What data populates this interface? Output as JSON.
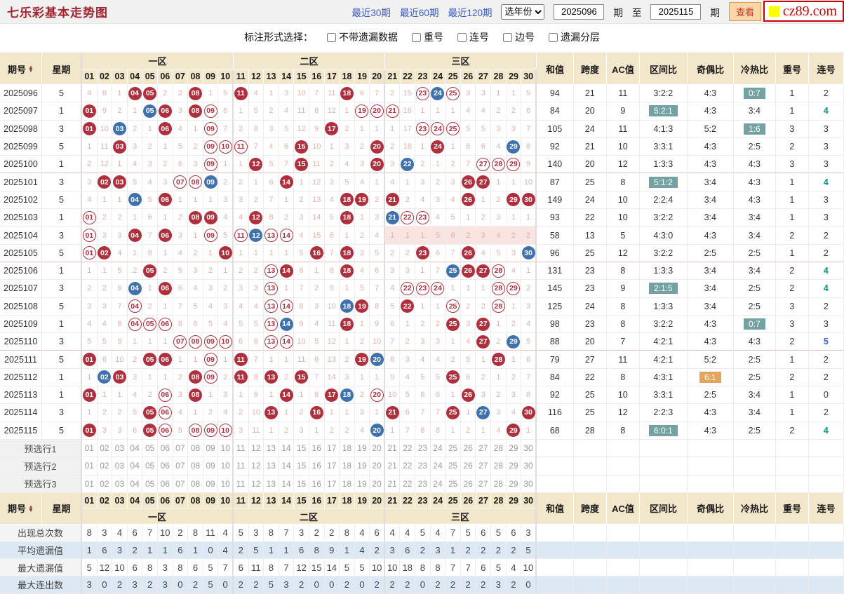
{
  "topbar": {
    "title": "七乐彩基本走势图",
    "links": [
      "最近30期",
      "最近60期",
      "最近120期"
    ],
    "year_select": "选年份",
    "range_from": "2025096",
    "issue_suffix": "期",
    "to_label": "至",
    "range_to": "2025115",
    "view_button": "查看",
    "logo_text": "cz89.com"
  },
  "filter": {
    "label": "标注形式选择：",
    "options": [
      "不带遗漏数据",
      "重号",
      "连号",
      "边号",
      "遗漏分层"
    ]
  },
  "table": {
    "issue_col": "期号",
    "week_col": "星期",
    "zones": [
      "一区",
      "二区",
      "三区"
    ],
    "numbers": [
      "01",
      "02",
      "03",
      "04",
      "05",
      "06",
      "07",
      "08",
      "09",
      "10",
      "11",
      "12",
      "13",
      "14",
      "15",
      "16",
      "17",
      "18",
      "19",
      "20",
      "21",
      "22",
      "23",
      "24",
      "25",
      "26",
      "27",
      "28",
      "29",
      "30"
    ],
    "stat_cols": [
      "和值",
      "跨度",
      "AC值",
      "区间比",
      "奇偶比",
      "冷热比",
      "重号",
      "连号"
    ],
    "rows": [
      {
        "issue": "2025096",
        "week": "5",
        "cells": [
          "4",
          "8",
          "1",
          "r04",
          "r05",
          "2",
          "2",
          "r08",
          "1",
          "5",
          "r11",
          "4",
          "1",
          "3",
          "10",
          "7",
          "11",
          "r18",
          "6",
          "7",
          "2",
          "15",
          "o23",
          "b24",
          "o25",
          "3",
          "3",
          "1",
          "1",
          "5"
        ],
        "stats": [
          "94",
          "21",
          "11",
          "3:2:2",
          "4:3",
          "0:7",
          "1",
          "2"
        ],
        "hl": {
          "5": "teal"
        }
      },
      {
        "issue": "2025097",
        "week": "1",
        "cells": [
          "r01",
          "9",
          "2",
          "1",
          "b05",
          "r06",
          "3",
          "r08",
          "o09",
          "6",
          "1",
          "5",
          "2",
          "4",
          "11",
          "8",
          "12",
          "1",
          "o19",
          "o20",
          "o21",
          "16",
          "1",
          "1",
          "1",
          "4",
          "4",
          "2",
          "2",
          "6"
        ],
        "stats": [
          "84",
          "20",
          "9",
          "5:2:1",
          "4:3",
          "3:4",
          "1",
          "4"
        ],
        "hl": {
          "3": "teal"
        },
        "txt": {
          "7": "teal"
        }
      },
      {
        "issue": "2025098",
        "week": "3",
        "cells": [
          "r01",
          "10",
          "b03",
          "2",
          "1",
          "r06",
          "4",
          "1",
          "o09",
          "7",
          "2",
          "8",
          "3",
          "5",
          "12",
          "9",
          "r17",
          "2",
          "1",
          "1",
          "1",
          "17",
          "o23",
          "o24",
          "o25",
          "5",
          "5",
          "3",
          "3",
          "7"
        ],
        "stats": [
          "105",
          "24",
          "11",
          "4:1:3",
          "5:2",
          "1:6",
          "3",
          "3"
        ],
        "hl": {
          "5": "teal"
        }
      },
      {
        "issue": "2025099",
        "week": "5",
        "cells": [
          "1",
          "11",
          "r03",
          "3",
          "2",
          "1",
          "5",
          "2",
          "o09",
          "o10",
          "o11",
          "7",
          "4",
          "6",
          "r15",
          "10",
          "1",
          "3",
          "2",
          "r20",
          "2",
          "18",
          "1",
          "r24",
          "1",
          "6",
          "6",
          "4",
          "b29",
          "8"
        ],
        "stats": [
          "92",
          "21",
          "10",
          "3:3:1",
          "4:3",
          "2:5",
          "2",
          "3"
        ]
      },
      {
        "issue": "2025100",
        "week": "1",
        "cells": [
          "2",
          "12",
          "1",
          "4",
          "3",
          "2",
          "6",
          "3",
          "o09",
          "1",
          "1",
          "r12",
          "5",
          "7",
          "r15",
          "11",
          "2",
          "4",
          "3",
          "r20",
          "3",
          "b22",
          "2",
          "1",
          "2",
          "7",
          "o27",
          "o28",
          "o29",
          "9"
        ],
        "stats": [
          "140",
          "20",
          "12",
          "1:3:3",
          "4:3",
          "4:3",
          "3",
          "3"
        ]
      },
      {
        "issue": "2025101",
        "week": "3",
        "cells": [
          "3",
          "r02",
          "r03",
          "5",
          "4",
          "3",
          "o07",
          "o08",
          "b09",
          "2",
          "2",
          "1",
          "6",
          "r14",
          "1",
          "12",
          "3",
          "5",
          "4",
          "1",
          "4",
          "1",
          "3",
          "2",
          "3",
          "r26",
          "r27",
          "1",
          "1",
          "10"
        ],
        "stats": [
          "87",
          "25",
          "8",
          "5:1:2",
          "3:4",
          "4:3",
          "1",
          "4"
        ],
        "hl": {
          "3": "teal"
        },
        "txt": {
          "7": "teal"
        }
      },
      {
        "issue": "2025102",
        "week": "5",
        "cells": [
          "4",
          "1",
          "1",
          "b04",
          "5",
          "r06",
          "1",
          "1",
          "1",
          "3",
          "3",
          "2",
          "7",
          "1",
          "2",
          "13",
          "4",
          "r18",
          "r19",
          "2",
          "r21",
          "2",
          "4",
          "3",
          "4",
          "r26",
          "1",
          "2",
          "r29",
          "r30"
        ],
        "stats": [
          "149",
          "24",
          "10",
          "2:2:4",
          "3:4",
          "4:3",
          "1",
          "3"
        ]
      },
      {
        "issue": "2025103",
        "week": "1",
        "cells": [
          "o01",
          "2",
          "2",
          "1",
          "6",
          "1",
          "2",
          "r08",
          "r09",
          "4",
          "4",
          "r12",
          "8",
          "2",
          "3",
          "14",
          "5",
          "r18",
          "1",
          "3",
          "b21",
          "o22",
          "o23",
          "4",
          "5",
          "1",
          "2",
          "3",
          "1",
          "1"
        ],
        "stats": [
          "93",
          "22",
          "10",
          "3:2:2",
          "3:4",
          "3:4",
          "1",
          "3"
        ]
      },
      {
        "issue": "2025104",
        "week": "3",
        "cells": [
          "o01",
          "3",
          "3",
          "r04",
          "7",
          "r06",
          "3",
          "1",
          "o09",
          "5",
          "o11",
          "b12",
          "o13",
          "o14",
          "4",
          "15",
          "6",
          "1",
          "2",
          "4",
          "1",
          "1",
          "1",
          "5",
          "6",
          "2",
          "3",
          "4",
          "2",
          "2"
        ],
        "stats": [
          "58",
          "13",
          "5",
          "4:3:0",
          "4:3",
          "3:4",
          "2",
          "2"
        ],
        "pink_zone": 3
      },
      {
        "issue": "2025105",
        "week": "5",
        "cells": [
          "o01",
          "r02",
          "4",
          "1",
          "8",
          "1",
          "4",
          "2",
          "1",
          "r10",
          "1",
          "1",
          "1",
          "1",
          "5",
          "r16",
          "7",
          "r18",
          "3",
          "5",
          "2",
          "2",
          "r23",
          "6",
          "7",
          "r26",
          "4",
          "5",
          "3",
          "b30"
        ],
        "stats": [
          "96",
          "25",
          "12",
          "3:2:2",
          "2:5",
          "2:5",
          "1",
          "2"
        ]
      },
      {
        "issue": "2025106",
        "week": "1",
        "cells": [
          "1",
          "1",
          "5",
          "2",
          "r05",
          "2",
          "5",
          "3",
          "2",
          "1",
          "2",
          "2",
          "o13",
          "r14",
          "6",
          "1",
          "8",
          "r18",
          "4",
          "6",
          "3",
          "3",
          "1",
          "7",
          "b25",
          "r26",
          "r27",
          "o28",
          "4",
          "1"
        ],
        "stats": [
          "131",
          "23",
          "8",
          "1:3:3",
          "3:4",
          "3:4",
          "2",
          "4"
        ],
        "txt": {
          "7": "teal"
        }
      },
      {
        "issue": "2025107",
        "week": "3",
        "cells": [
          "2",
          "2",
          "6",
          "b04",
          "1",
          "r06",
          "6",
          "4",
          "3",
          "2",
          "3",
          "3",
          "o13",
          "1",
          "7",
          "2",
          "9",
          "1",
          "5",
          "7",
          "4",
          "o22",
          "o23",
          "o24",
          "1",
          "1",
          "1",
          "o28",
          "o29",
          "2"
        ],
        "stats": [
          "145",
          "23",
          "9",
          "2:1:5",
          "3:4",
          "2:5",
          "2",
          "4"
        ],
        "hl": {
          "3": "teal"
        },
        "txt": {
          "7": "teal"
        }
      },
      {
        "issue": "2025108",
        "week": "5",
        "cells": [
          "3",
          "3",
          "7",
          "o04",
          "2",
          "1",
          "7",
          "5",
          "4",
          "3",
          "4",
          "4",
          "o13",
          "o14",
          "8",
          "3",
          "10",
          "b18",
          "r19",
          "8",
          "5",
          "r22",
          "1",
          "1",
          "o25",
          "2",
          "2",
          "o28",
          "1",
          "3"
        ],
        "stats": [
          "125",
          "24",
          "8",
          "1:3:3",
          "3:4",
          "2:5",
          "3",
          "2"
        ]
      },
      {
        "issue": "2025109",
        "week": "1",
        "cells": [
          "4",
          "4",
          "8",
          "o04",
          "o05",
          "o06",
          "8",
          "6",
          "5",
          "4",
          "5",
          "5",
          "o13",
          "b14",
          "9",
          "4",
          "11",
          "r18",
          "1",
          "9",
          "6",
          "1",
          "2",
          "2",
          "r25",
          "3",
          "r27",
          "1",
          "2",
          "4"
        ],
        "stats": [
          "98",
          "23",
          "8",
          "3:2:2",
          "4:3",
          "0:7",
          "3",
          "3"
        ],
        "hl": {
          "5": "teal"
        }
      },
      {
        "issue": "2025110",
        "week": "3",
        "cells": [
          "5",
          "5",
          "9",
          "1",
          "1",
          "1",
          "o07",
          "o08",
          "o09",
          "o10",
          "6",
          "6",
          "o13",
          "o14",
          "10",
          "5",
          "12",
          "1",
          "2",
          "10",
          "7",
          "2",
          "3",
          "3",
          "1",
          "4",
          "r27",
          "2",
          "b29",
          "5"
        ],
        "stats": [
          "88",
          "20",
          "7",
          "4:2:1",
          "4:3",
          "4:3",
          "2",
          "5"
        ],
        "txt": {
          "7": "blue"
        }
      },
      {
        "issue": "2025111",
        "week": "5",
        "cells": [
          "r01",
          "6",
          "10",
          "2",
          "r05",
          "r06",
          "1",
          "1",
          "o09",
          "1",
          "r11",
          "7",
          "1",
          "1",
          "11",
          "6",
          "13",
          "2",
          "r19",
          "b20",
          "8",
          "3",
          "4",
          "4",
          "2",
          "5",
          "1",
          "r28",
          "1",
          "6"
        ],
        "stats": [
          "79",
          "27",
          "11",
          "4:2:1",
          "5:2",
          "2:5",
          "1",
          "2"
        ]
      },
      {
        "issue": "2025112",
        "week": "1",
        "cells": [
          "1",
          "b02",
          "r03",
          "3",
          "1",
          "1",
          "2",
          "r08",
          "o09",
          "2",
          "r11",
          "8",
          "r13",
          "2",
          "r15",
          "7",
          "14",
          "3",
          "1",
          "1",
          "9",
          "4",
          "5",
          "5",
          "r25",
          "6",
          "2",
          "1",
          "2",
          "7"
        ],
        "stats": [
          "84",
          "22",
          "8",
          "4:3:1",
          "6:1",
          "2:5",
          "2",
          "2"
        ],
        "hl": {
          "4": "orange"
        }
      },
      {
        "issue": "2025113",
        "week": "1",
        "cells": [
          "r01",
          "1",
          "1",
          "4",
          "2",
          "o06",
          "3",
          "r08",
          "1",
          "3",
          "1",
          "9",
          "1",
          "r14",
          "1",
          "8",
          "r17",
          "b18",
          "2",
          "o20",
          "10",
          "5",
          "6",
          "6",
          "1",
          "r26",
          "3",
          "2",
          "3",
          "8"
        ],
        "stats": [
          "92",
          "25",
          "10",
          "3:3:1",
          "2:5",
          "3:4",
          "1",
          "0"
        ]
      },
      {
        "issue": "2025114",
        "week": "3",
        "cells": [
          "1",
          "2",
          "2",
          "5",
          "r05",
          "o06",
          "4",
          "1",
          "2",
          "4",
          "2",
          "10",
          "r13",
          "1",
          "2",
          "r16",
          "1",
          "1",
          "3",
          "1",
          "r21",
          "6",
          "7",
          "7",
          "r25",
          "1",
          "b27",
          "3",
          "4",
          "r30"
        ],
        "stats": [
          "116",
          "25",
          "12",
          "2:2:3",
          "4:3",
          "3:4",
          "1",
          "2"
        ]
      },
      {
        "issue": "2025115",
        "week": "5",
        "cells": [
          "r01",
          "3",
          "3",
          "6",
          "r05",
          "o06",
          "5",
          "o08",
          "o09",
          "o10",
          "3",
          "11",
          "1",
          "2",
          "3",
          "1",
          "2",
          "2",
          "4",
          "b20",
          "1",
          "7",
          "8",
          "8",
          "1",
          "2",
          "1",
          "4",
          "r29",
          "1"
        ],
        "stats": [
          "68",
          "28",
          "8",
          "6:0:1",
          "4:3",
          "2:5",
          "2",
          "4"
        ],
        "hl": {
          "3": "teal"
        },
        "txt": {
          "7": "teal"
        }
      }
    ],
    "preselect_rows": [
      "预选行1",
      "预选行2",
      "预选行3"
    ],
    "bottom_stats": [
      {
        "label": "出现总次数",
        "values": [
          "8",
          "3",
          "4",
          "6",
          "7",
          "10",
          "2",
          "8",
          "11",
          "4",
          "5",
          "3",
          "8",
          "7",
          "3",
          "2",
          "2",
          "8",
          "4",
          "6",
          "4",
          "4",
          "5",
          "4",
          "7",
          "5",
          "6",
          "5",
          "6",
          "3"
        ]
      },
      {
        "label": "平均遗漏值",
        "values": [
          "1",
          "6",
          "3",
          "2",
          "1",
          "1",
          "6",
          "1",
          "0",
          "4",
          "2",
          "5",
          "1",
          "1",
          "6",
          "8",
          "9",
          "1",
          "4",
          "2",
          "3",
          "6",
          "2",
          "3",
          "1",
          "2",
          "2",
          "2",
          "2",
          "5"
        ]
      },
      {
        "label": "最大遗漏值",
        "values": [
          "5",
          "12",
          "10",
          "6",
          "8",
          "3",
          "8",
          "6",
          "5",
          "7",
          "6",
          "11",
          "8",
          "7",
          "12",
          "15",
          "14",
          "5",
          "5",
          "10",
          "10",
          "18",
          "8",
          "8",
          "7",
          "7",
          "6",
          "5",
          "4",
          "10"
        ]
      },
      {
        "label": "最大连出数",
        "values": [
          "3",
          "0",
          "2",
          "3",
          "2",
          "3",
          "0",
          "2",
          "5",
          "0",
          "2",
          "2",
          "5",
          "3",
          "2",
          "0",
          "0",
          "2",
          "0",
          "2",
          "2",
          "2",
          "0",
          "2",
          "2",
          "2",
          "2",
          "3",
          "2",
          "0"
        ]
      }
    ]
  },
  "colors": {
    "accent_red": "#a1242e",
    "ball_red": "#b02f3d",
    "ball_blue": "#3f72ad",
    "highlight_teal": "#74a2a2",
    "highlight_orange": "#e2a45f",
    "link_blue": "#3a5cc5",
    "miss_pink": "#dcb3a8",
    "header_bg": "#f2e7cb"
  }
}
